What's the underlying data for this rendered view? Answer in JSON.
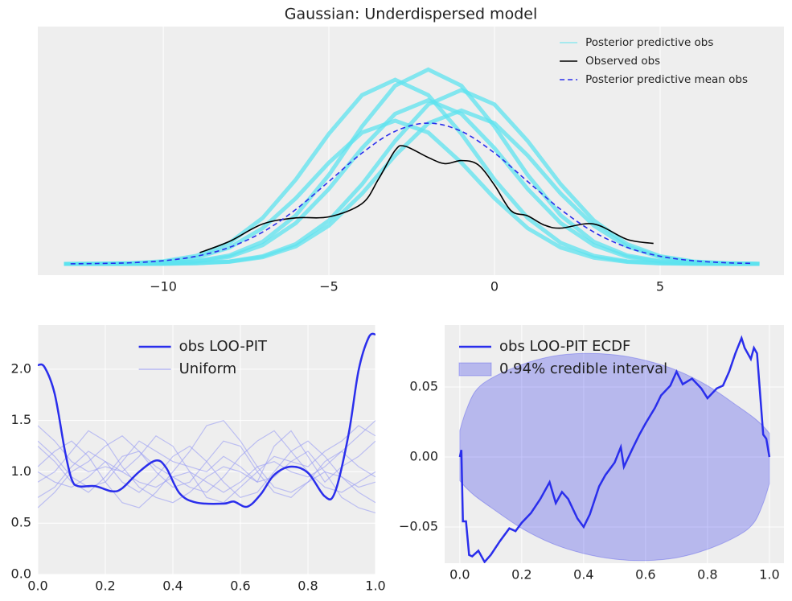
{
  "chart_data": [
    {
      "type": "line",
      "title": "Gaussian: Underdispersed model",
      "xlim": [
        -13.79,
        8.74
      ],
      "ylim": [
        -0.011,
        0.232
      ],
      "xticks": [
        {
          "value": -10,
          "label": "−10"
        },
        {
          "value": -5,
          "label": "−5"
        },
        0,
        5
      ],
      "grid": true,
      "legend": "upper right",
      "series": [
        {
          "name": "Posterior predictive obs",
          "color": "#5ee3ef",
          "x": [
            -13,
            -12,
            -11,
            -10,
            -9,
            -8,
            -7,
            -6,
            -5,
            -4,
            -3,
            -2,
            -1,
            0,
            1,
            2,
            3,
            4,
            5,
            6,
            7,
            8
          ],
          "samples": [
            [
              0,
              0,
              0.0001,
              0.0006,
              0.0023,
              0.007,
              0.0183,
              0.0399,
              0.0733,
              0.1131,
              0.1467,
              0.16,
              0.1467,
              0.1131,
              0.0733,
              0.0399,
              0.0183,
              0.007,
              0.0023,
              0.0006,
              0.0001,
              0
            ],
            [
              0,
              0.0002,
              0.0007,
              0.0026,
              0.0079,
              0.0206,
              0.0449,
              0.0824,
              0.1272,
              0.165,
              0.18,
              0.165,
              0.1272,
              0.0824,
              0.0449,
              0.0206,
              0.0079,
              0.0026,
              0.0007,
              0.0002,
              0,
              0
            ],
            [
              0,
              0,
              0,
              0.0001,
              0.0007,
              0.0024,
              0.0075,
              0.0194,
              0.0424,
              0.0778,
              0.1202,
              0.1559,
              0.17,
              0.1559,
              0.1202,
              0.0778,
              0.0424,
              0.0194,
              0.0075,
              0.0024,
              0.0007,
              0.0001
            ],
            [
              0,
              0,
              0.0002,
              0.0007,
              0.0027,
              0.0083,
              0.0217,
              0.0474,
              0.087,
              0.1343,
              0.1742,
              0.19,
              0.1742,
              0.1343,
              0.087,
              0.0474,
              0.0217,
              0.0083,
              0.0027,
              0.0007,
              0.0002,
              0
            ],
            [
              0,
              0.0001,
              0.0005,
              0.002,
              0.0061,
              0.016,
              0.0349,
              0.0641,
              0.099,
              0.1284,
              0.14,
              0.1284,
              0.099,
              0.0641,
              0.0349,
              0.016,
              0.0061,
              0.002,
              0.0005,
              0.0001,
              0,
              0
            ],
            [
              0,
              0,
              0,
              0.0001,
              0.0006,
              0.0021,
              0.0066,
              0.0171,
              0.0374,
              0.0687,
              0.106,
              0.1375,
              0.15,
              0.1375,
              0.106,
              0.0687,
              0.0374,
              0.0171,
              0.0066,
              0.0021,
              0.0006,
              0.0001
            ]
          ]
        },
        {
          "name": "Observed obs",
          "color": "#000000",
          "x": [
            -8.9,
            -8,
            -7,
            -6,
            -5,
            -4,
            -3.5,
            -3,
            -2.7,
            -2,
            -1.5,
            -1,
            -0.5,
            0,
            0.5,
            1,
            1.5,
            2,
            3,
            4,
            4.8
          ],
          "values": [
            0.011,
            0.022,
            0.039,
            0.045,
            0.046,
            0.059,
            0.083,
            0.111,
            0.115,
            0.104,
            0.098,
            0.101,
            0.097,
            0.077,
            0.052,
            0.047,
            0.038,
            0.035,
            0.039,
            0.024,
            0.02
          ]
        },
        {
          "name": "Posterior predictive mean obs",
          "color": "#2a2eec",
          "style": "dashed",
          "x": [
            -12.8,
            -12,
            -11,
            -10,
            -9,
            -8,
            -7,
            -6,
            -5,
            -4,
            -3,
            -2,
            -1,
            0,
            1,
            2,
            3,
            4,
            5,
            6,
            7,
            7.8
          ],
          "values": [
            0.0001,
            0.0004,
            0.0011,
            0.0031,
            0.0075,
            0.0162,
            0.0311,
            0.0532,
            0.0806,
            0.1084,
            0.1296,
            0.1376,
            0.1296,
            0.1084,
            0.0806,
            0.0532,
            0.0311,
            0.0162,
            0.0075,
            0.0031,
            0.0011,
            0.0005
          ]
        }
      ]
    },
    {
      "type": "line",
      "xlim": [
        0,
        1
      ],
      "ylim": [
        0,
        2.43
      ],
      "xticks": [
        {
          "value": 0,
          "label": "0.0"
        },
        0.2,
        0.4,
        0.6,
        0.8,
        {
          "value": 1,
          "label": "1.0"
        }
      ],
      "yticks": [
        {
          "value": 0,
          "label": "0.0"
        },
        0.5,
        {
          "value": 1,
          "label": "1.0"
        },
        1.5,
        {
          "value": 2,
          "label": "2.0"
        }
      ],
      "grid": true,
      "legend": "upper center",
      "series": [
        {
          "name": "Uniform",
          "color": "#9a9cf4",
          "x": [
            0,
            0.05,
            0.1,
            0.15,
            0.2,
            0.25,
            0.3,
            0.35,
            0.4,
            0.45,
            0.5,
            0.55,
            0.6,
            0.65,
            0.7,
            0.75,
            0.8,
            0.85,
            0.9,
            0.95,
            1
          ],
          "samples": [
            [
              1.25,
              1.1,
              0.9,
              0.8,
              0.95,
              1.15,
              1.2,
              1.0,
              0.85,
              0.9,
              1.1,
              1.3,
              1.25,
              1.0,
              0.8,
              0.75,
              0.9,
              1.1,
              1.2,
              1.05,
              0.95
            ],
            [
              0.75,
              0.85,
              1.05,
              1.2,
              1.1,
              0.9,
              0.8,
              0.95,
              1.15,
              1.25,
              1.1,
              0.9,
              0.75,
              0.8,
              1.0,
              1.2,
              1.3,
              1.15,
              0.95,
              0.85,
              0.9
            ],
            [
              1.45,
              1.3,
              1.1,
              1.0,
              1.05,
              1.0,
              0.9,
              0.85,
              0.95,
              1.0,
              0.9,
              0.8,
              0.9,
              1.05,
              1.1,
              1.0,
              0.95,
              1.05,
              1.2,
              1.35,
              1.5
            ],
            [
              0.65,
              0.8,
              1.0,
              1.1,
              1.25,
              1.35,
              1.2,
              1.05,
              0.95,
              0.85,
              0.8,
              0.95,
              1.15,
              1.3,
              1.4,
              1.2,
              1.0,
              0.85,
              0.8,
              0.9,
              1.0
            ],
            [
              1.05,
              1.2,
              1.3,
              1.15,
              0.9,
              0.7,
              0.65,
              0.8,
              1.0,
              1.2,
              1.45,
              1.5,
              1.3,
              1.05,
              0.85,
              0.8,
              0.9,
              1.0,
              0.95,
              0.8,
              0.7
            ],
            [
              1.0,
              0.9,
              0.85,
              0.95,
              1.1,
              1.0,
              1.15,
              1.35,
              1.25,
              1.0,
              0.75,
              0.7,
              0.85,
              1.0,
              1.15,
              1.1,
              1.05,
              1.2,
              1.3,
              1.45,
              1.35
            ],
            [
              0.9,
              1.0,
              1.2,
              1.4,
              1.3,
              1.05,
              0.85,
              0.75,
              0.7,
              0.8,
              0.95,
              1.05,
              1.0,
              0.9,
              0.95,
              1.1,
              1.2,
              1.0,
              0.75,
              0.65,
              0.6
            ],
            [
              1.3,
              1.15,
              0.95,
              0.85,
              0.9,
              1.1,
              1.3,
              1.2,
              1.1,
              1.05,
              1.0,
              1.15,
              1.05,
              0.9,
              1.25,
              1.4,
              1.15,
              0.9,
              1.05,
              1.15,
              1.3
            ]
          ]
        },
        {
          "name": "obs LOO-PIT",
          "color": "#2a2eec",
          "width": 2.5,
          "x": [
            0,
            0.02,
            0.05,
            0.08,
            0.1,
            0.12,
            0.17,
            0.22,
            0.25,
            0.3,
            0.35,
            0.38,
            0.42,
            0.47,
            0.55,
            0.58,
            0.62,
            0.66,
            0.7,
            0.75,
            0.8,
            0.85,
            0.88,
            0.92,
            0.95,
            0.98,
            1
          ],
          "values": [
            2.04,
            2.02,
            1.76,
            1.21,
            0.93,
            0.86,
            0.86,
            0.81,
            0.84,
            1.0,
            1.11,
            1.04,
            0.79,
            0.7,
            0.69,
            0.71,
            0.66,
            0.78,
            0.97,
            1.05,
            0.99,
            0.76,
            0.8,
            1.36,
            1.99,
            2.31,
            2.34
          ]
        }
      ],
      "legend_order": [
        "obs LOO-PIT",
        "Uniform"
      ]
    },
    {
      "type": "line",
      "xlim": [
        -0.049,
        1.047
      ],
      "ylim": [
        -0.0759,
        0.0943
      ],
      "xticks": [
        {
          "value": 0,
          "label": "0.0"
        },
        0.2,
        0.4,
        0.6,
        0.8,
        {
          "value": 1,
          "label": "1.0"
        }
      ],
      "yticks": [
        {
          "value": -0.05,
          "label": "−0.05"
        },
        {
          "value": 0,
          "label": "0.00"
        },
        0.05
      ],
      "grid": true,
      "legend": "upper left",
      "series": [
        {
          "name": "0.94% credible interval",
          "color": "#2a2eec",
          "x": [
            0,
            0.02,
            0.05,
            0.1,
            0.2,
            0.3,
            0.4,
            0.5,
            0.6,
            0.7,
            0.8,
            0.9,
            0.95,
            0.98,
            1
          ],
          "upper": [
            0.019,
            0.033,
            0.047,
            0.056,
            0.066,
            0.072,
            0.074,
            0.073,
            0.069,
            0.062,
            0.051,
            0.036,
            0.028,
            0.022,
            0.017
          ],
          "lower": [
            -0.017,
            -0.022,
            -0.028,
            -0.036,
            -0.051,
            -0.062,
            -0.069,
            -0.073,
            -0.074,
            -0.072,
            -0.066,
            -0.056,
            -0.047,
            -0.033,
            -0.019
          ]
        },
        {
          "name": "obs LOO-PIT ECDF",
          "color": "#2a2eec",
          "width": 2.5,
          "x": [
            0,
            0.005,
            0.01,
            0.02,
            0.03,
            0.04,
            0.06,
            0.08,
            0.1,
            0.13,
            0.16,
            0.18,
            0.2,
            0.23,
            0.26,
            0.29,
            0.31,
            0.33,
            0.35,
            0.38,
            0.4,
            0.42,
            0.45,
            0.47,
            0.5,
            0.52,
            0.53,
            0.56,
            0.58,
            0.6,
            0.63,
            0.65,
            0.68,
            0.7,
            0.72,
            0.75,
            0.78,
            0.8,
            0.83,
            0.85,
            0.87,
            0.89,
            0.91,
            0.92,
            0.94,
            0.95,
            0.96,
            0.98,
            0.99,
            1
          ],
          "values": [
            0,
            0.005,
            -0.046,
            -0.046,
            -0.07,
            -0.071,
            -0.067,
            -0.075,
            -0.07,
            -0.06,
            -0.051,
            -0.053,
            -0.047,
            -0.04,
            -0.03,
            -0.018,
            -0.033,
            -0.025,
            -0.03,
            -0.044,
            -0.05,
            -0.041,
            -0.021,
            -0.013,
            -0.004,
            0.007,
            -0.007,
            0.007,
            0.016,
            0.024,
            0.035,
            0.044,
            0.051,
            0.061,
            0.052,
            0.056,
            0.049,
            0.042,
            0.049,
            0.051,
            0.061,
            0.074,
            0.085,
            0.078,
            0.07,
            0.078,
            0.074,
            0.016,
            0.013,
            0
          ]
        }
      ],
      "legend_order": [
        "obs LOO-PIT ECDF",
        "0.94% credible interval"
      ]
    }
  ]
}
